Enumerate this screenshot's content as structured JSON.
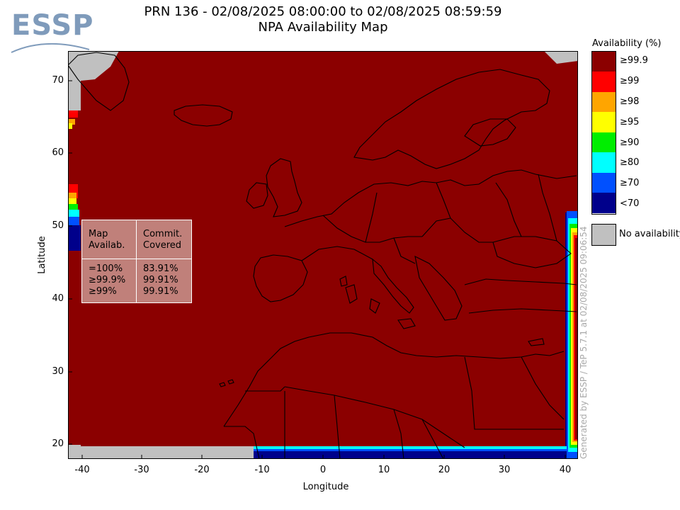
{
  "header": {
    "title_line1": "PRN 136 - 02/08/2025 08:00:00 to 02/08/2025 08:59:59",
    "title_line2": "NPA Availability Map"
  },
  "logo": {
    "text": "ESSP"
  },
  "axes": {
    "x_title": "Longitude",
    "y_title": "Latitude",
    "x_ticks": [
      "-40",
      "-30",
      "-20",
      "-10",
      "0",
      "10",
      "20",
      "30",
      "40"
    ],
    "y_ticks": [
      "70",
      "60",
      "50",
      "40",
      "30",
      "20"
    ],
    "x_range": [
      -42,
      42
    ],
    "y_range": [
      18,
      74
    ]
  },
  "stats_box": {
    "col1_header_line1": "Map",
    "col1_header_line2": "Availab.",
    "col2_header_line1": "Commit.",
    "col2_header_line2": "Covered",
    "rows": [
      {
        "label": "=100%",
        "value": "83.91%"
      },
      {
        "label": "≥99.9%",
        "value": "99.91%"
      },
      {
        "label": "≥99%",
        "value": "99.91%"
      }
    ]
  },
  "legend": {
    "title": "Availability (%)",
    "items": [
      {
        "label": "≥99.9",
        "color": "#8b0000"
      },
      {
        "label": "≥99",
        "color": "#ff0000"
      },
      {
        "label": "≥98",
        "color": "#ffa500"
      },
      {
        "label": "≥95",
        "color": "#ffff00"
      },
      {
        "label": "≥90",
        "color": "#00ee00"
      },
      {
        "label": "≥80",
        "color": "#00ffff"
      },
      {
        "label": "≥70",
        "color": "#0050ff"
      },
      {
        "label": "<70",
        "color": "#00008b"
      }
    ],
    "no_availability_label": "No availability",
    "no_availability_color": "#c0c0c0"
  },
  "credit": "Generated by ESSP / TeP 5.7.1 at 02/08/2025 09:06:54",
  "colors": {
    "main": "#8b0000",
    "no_data": "#c0c0c0",
    "coastline": "#000000"
  }
}
